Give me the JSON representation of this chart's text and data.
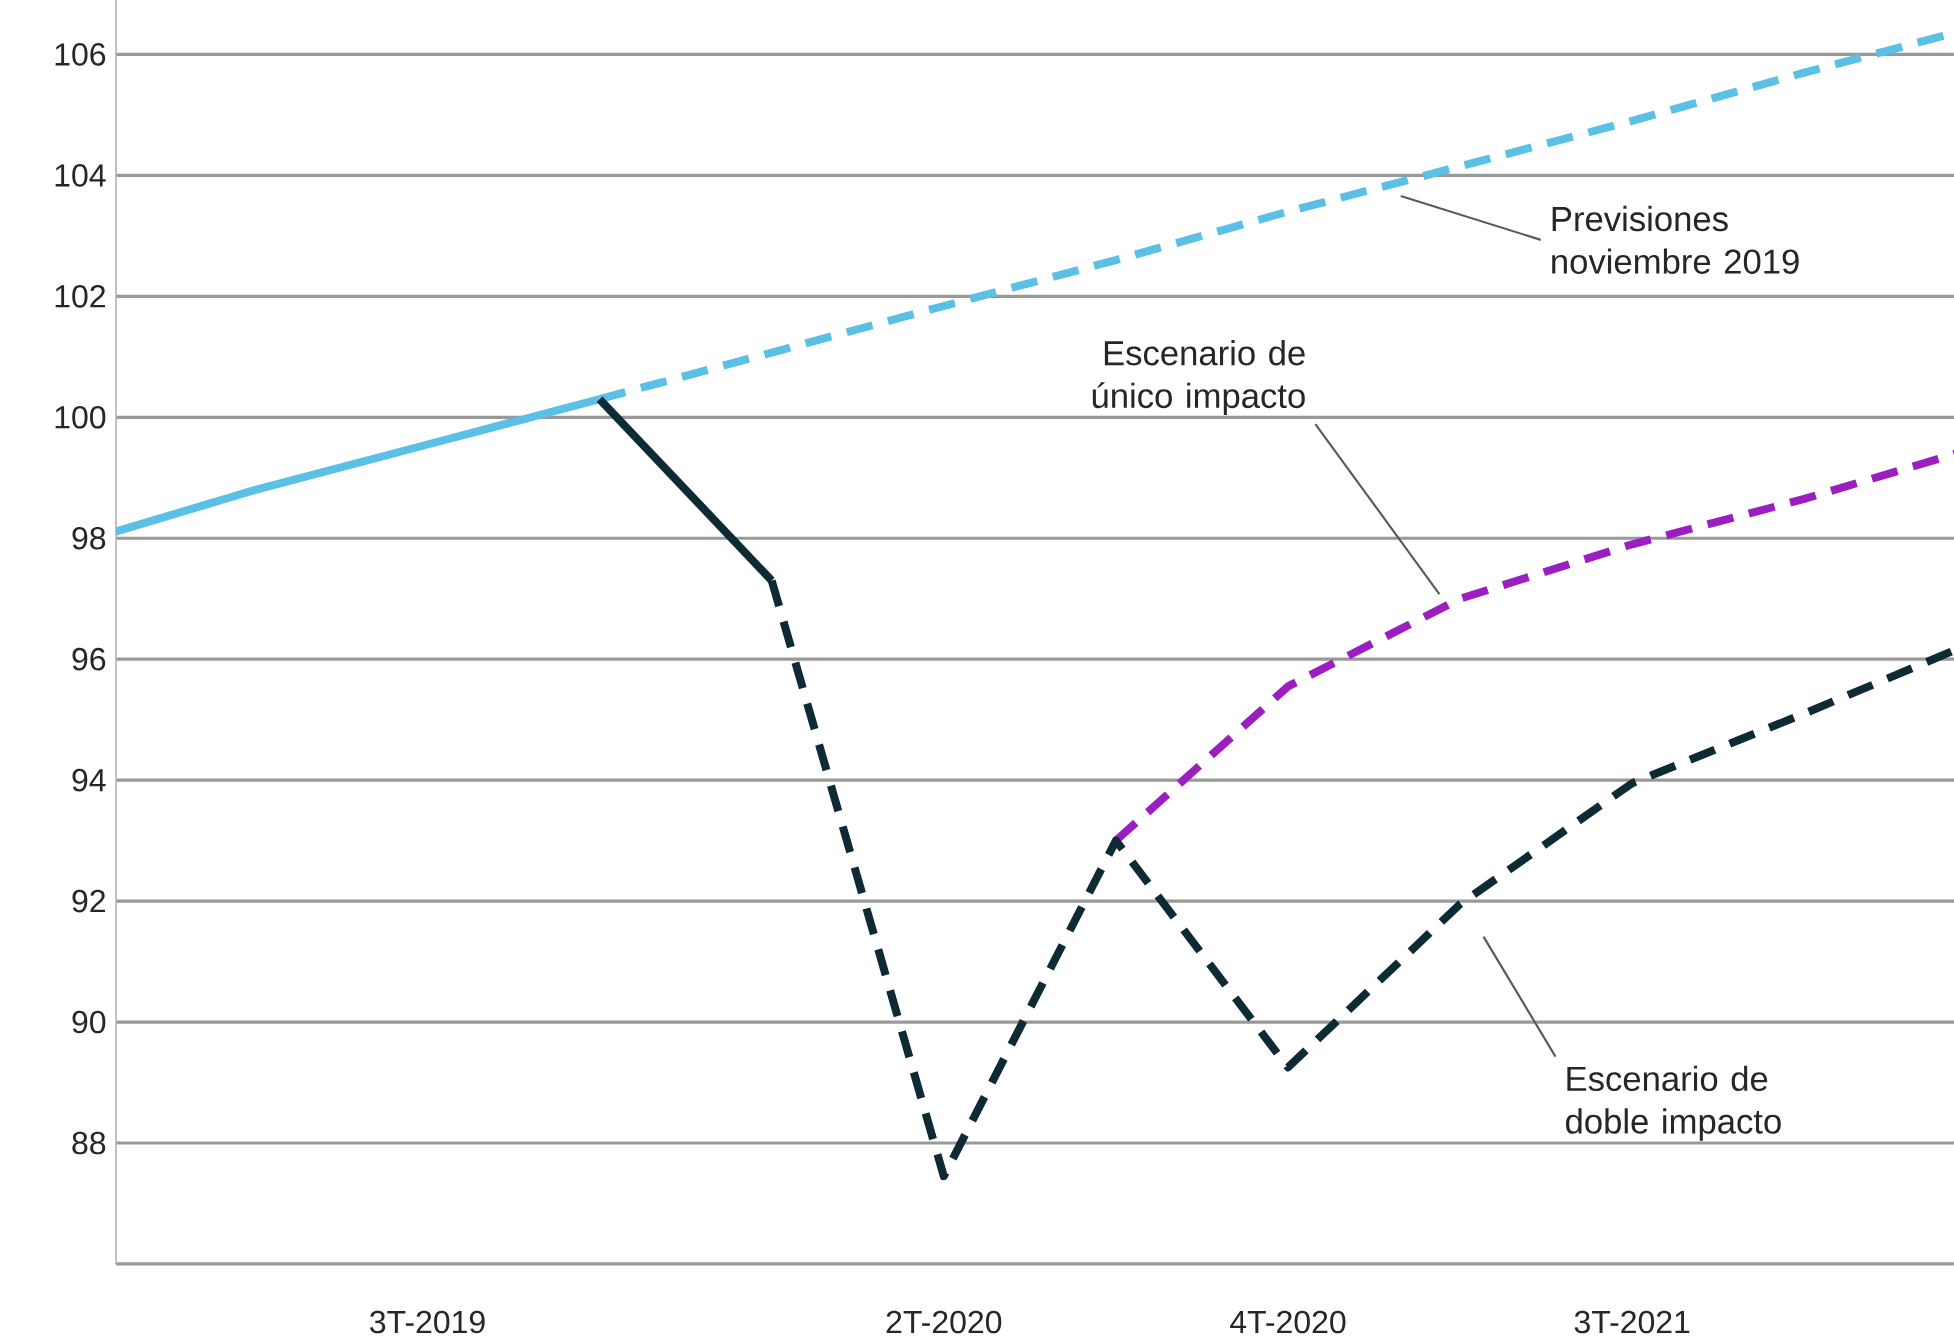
{
  "chart_data": {
    "type": "line",
    "categories": [
      null,
      null,
      "3T-2019",
      null,
      null,
      "2T-2020",
      null,
      "4T-2020",
      null,
      "3T-2021",
      null,
      null
    ],
    "ylim": [
      86,
      106.9
    ],
    "yticks": [
      {
        "value": 86,
        "label": null
      },
      88,
      90,
      92,
      94,
      96,
      98,
      100,
      102,
      104,
      106
    ],
    "grid": "y",
    "series": [
      {
        "color": "#5bc0e6",
        "line_style": "solid",
        "values": [
          97.95,
          98.8,
          99.55,
          100.3,
          null,
          null,
          null,
          null,
          null,
          null,
          null,
          null
        ]
      },
      {
        "color": "#5bc0e6",
        "line_style": "dashed",
        "values": [
          null,
          null,
          null,
          100.3,
          101.07,
          101.84,
          102.6,
          103.4,
          104.15,
          104.9,
          105.7,
          106.45
        ]
      },
      {
        "color": "#0d2a35",
        "line_style": "solid",
        "values": [
          null,
          null,
          null,
          100.3,
          97.3,
          null,
          null,
          null,
          null,
          null,
          null,
          null
        ]
      },
      {
        "color": "#9b1fc0",
        "line_style": "dashed",
        "values": [
          null,
          null,
          null,
          null,
          null,
          null,
          93.0,
          95.55,
          97.0,
          97.9,
          98.65,
          99.5
        ]
      },
      {
        "color": "#0d2a35",
        "line_style": "dashed",
        "values": [
          null,
          null,
          null,
          null,
          97.3,
          87.45,
          93.0,
          89.25,
          91.95,
          93.95,
          95.1,
          96.3
        ]
      }
    ],
    "annotations": [
      "Previsiones noviembre 2019",
      "Escenario de único impacto",
      "Escenario de doble impacto"
    ]
  }
}
